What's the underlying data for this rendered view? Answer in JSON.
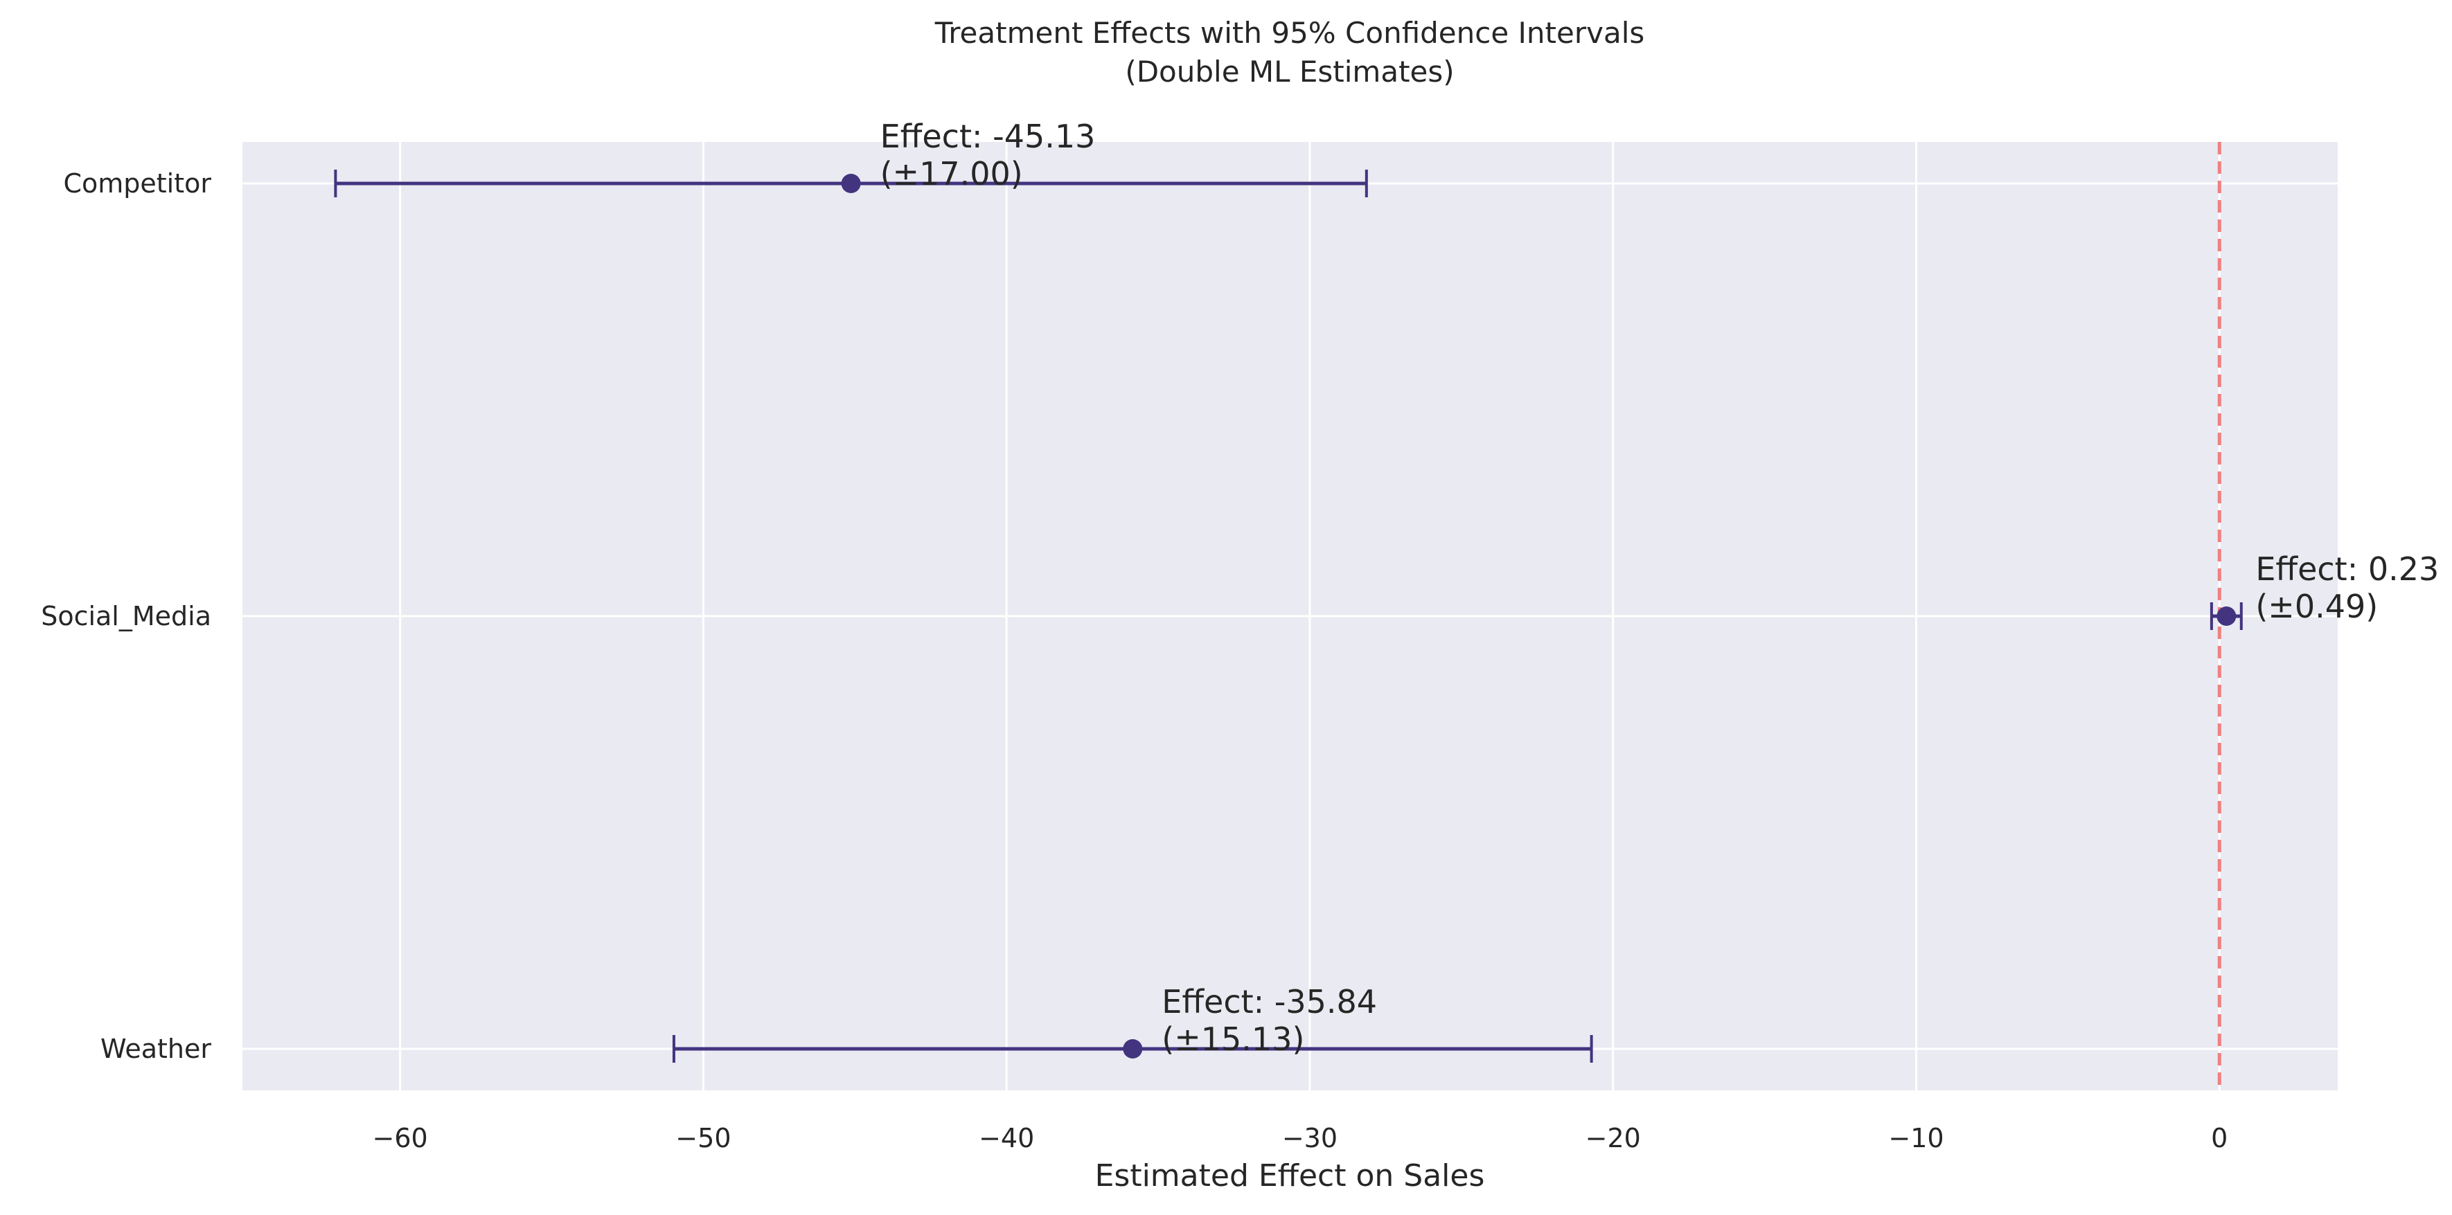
{
  "chart_data": {
    "type": "errorbar",
    "title": "Treatment Effects with 95% Confidence Intervals",
    "subtitle": "(Double ML Estimates)",
    "xlabel": "Estimated Effect on Sales",
    "ylabel": "",
    "xlim": [
      -65.2,
      3.9
    ],
    "xticks": [
      -60,
      -50,
      -40,
      -30,
      -20,
      -10,
      0
    ],
    "xtick_labels": [
      "−60",
      "−50",
      "−40",
      "−30",
      "−20",
      "−10",
      "0"
    ],
    "grid": true,
    "reference_line": {
      "x": 0,
      "style": "dashed",
      "color": "#f08080"
    },
    "series_color": "#433480",
    "background_color": "#eaeaf2",
    "items": [
      {
        "label": "Competitor",
        "effect": -45.13,
        "ci_halfwidth": 17.0,
        "annotation": [
          "Effect: -45.13",
          "(±17.00)"
        ]
      },
      {
        "label": "Social_Media",
        "effect": 0.23,
        "ci_halfwidth": 0.49,
        "annotation": [
          "Effect: 0.23",
          "(±0.49)"
        ]
      },
      {
        "label": "Weather",
        "effect": -35.84,
        "ci_halfwidth": 15.13,
        "annotation": [
          "Effect: -35.84",
          "(±15.13)"
        ]
      }
    ]
  }
}
